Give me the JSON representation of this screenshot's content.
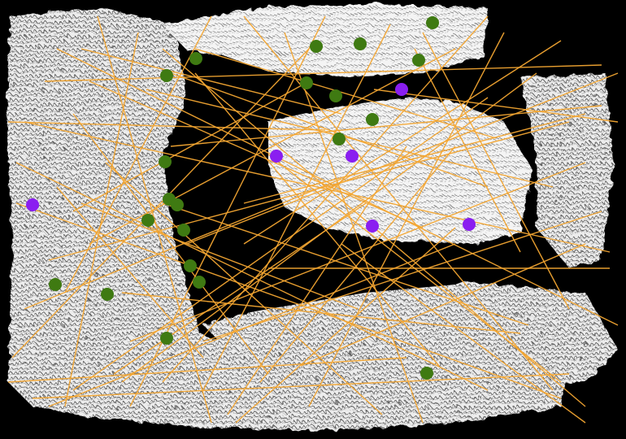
{
  "colors": {
    "background": "#000000",
    "surface": "#e9e9e9",
    "surface_shadow": "#6a6a6a",
    "track_line": "#f2a531",
    "inlier_point": "#3f7a12",
    "outlier_point": "#8a1ef0"
  },
  "legend": {}
}
